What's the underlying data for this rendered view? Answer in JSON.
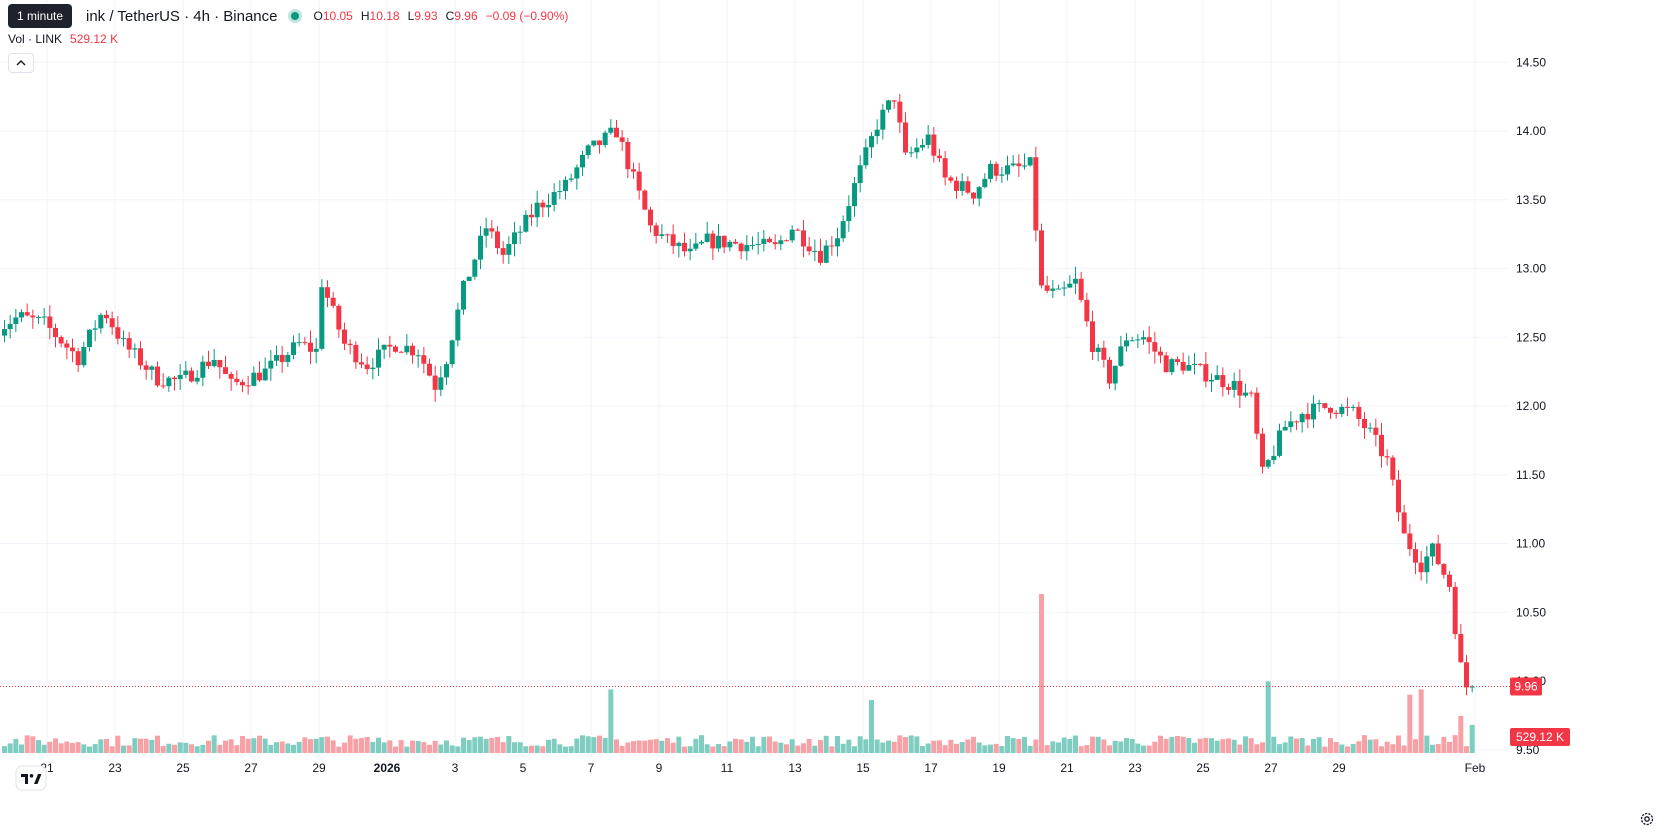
{
  "legend": {
    "title": "ink / TetherUS · 4h · Binance",
    "tooltip": "1 minute",
    "open_key": "O",
    "open": "10.05",
    "high_key": "H",
    "high": "10.18",
    "low_key": "L",
    "low": "9.93",
    "close_key": "C",
    "close": "9.96",
    "change": "−0.09 (−0.90%)",
    "vol_label": "Vol · LINK",
    "vol_value": "529.12 K"
  },
  "price_label": "9.96",
  "volume_label": "529.12 K",
  "colors": {
    "up": "#089981",
    "down": "#f23645",
    "up_vol": "#7fcdc1",
    "down_vol": "#f7a1a7"
  },
  "icons": [
    "chevron-up-icon",
    "tradingview-logo-icon",
    "settings-icon"
  ],
  "chart_data": {
    "type": "candlestick",
    "title": "LINK / TetherUS · 4h · Binance",
    "y_axis_side": "right",
    "y_ticks": [
      "14.50",
      "14.00",
      "13.50",
      "13.00",
      "12.50",
      "12.00",
      "11.50",
      "11.00",
      "10.50",
      "10.00",
      "9.50"
    ],
    "x_ticks": [
      "21",
      "23",
      "25",
      "27",
      "29",
      "2026",
      "3",
      "5",
      "7",
      "9",
      "11",
      "13",
      "15",
      "17",
      "19",
      "21",
      "23",
      "25",
      "27",
      "29",
      "Feb"
    ],
    "grid": true,
    "volume_pane": "overlay-bottom",
    "anchors": [
      [
        "Dec 19 12:00",
        12.55
      ],
      [
        "Dec 20 06:00",
        12.65
      ],
      [
        "Dec 21 00:00",
        12.6
      ],
      [
        "Dec 22 00:00",
        12.35
      ],
      [
        "Dec 22 18:00",
        12.7
      ],
      [
        "Dec 23 08:00",
        12.45
      ],
      [
        "Dec 24 08:00",
        12.2
      ],
      [
        "Dec 25 00:00",
        12.18
      ],
      [
        "Dec 26 00:00",
        12.35
      ],
      [
        "Dec 26 12:00",
        12.15
      ],
      [
        "Dec 27 12:00",
        12.25
      ],
      [
        "Dec 28 12:00",
        12.45
      ],
      [
        "Dec 29 00:00",
        12.4
      ],
      [
        "Dec 29 04:00",
        12.9
      ],
      [
        "Dec 29 20:00",
        12.45
      ],
      [
        "Dec 30 12:00",
        12.3
      ],
      [
        "Dec 31 08:00",
        12.45
      ],
      [
        "Jan 1 00:00",
        12.4
      ],
      [
        "Jan 1 12:00",
        12.15
      ],
      [
        "Jan 1 20:00",
        12.35
      ],
      [
        "Jan 2 08:00",
        12.85
      ],
      [
        "Jan 3 00:00",
        13.3
      ],
      [
        "Jan 3 12:00",
        13.1
      ],
      [
        "Jan 4 12:00",
        13.45
      ],
      [
        "Jan 5 08:00",
        13.6
      ],
      [
        "Jan 6 00:00",
        13.85
      ],
      [
        "Jan 6 20:00",
        14.0
      ],
      [
        "Jan 7 08:00",
        13.65
      ],
      [
        "Jan 7 20:00",
        13.3
      ],
      [
        "Jan 8 08:00",
        13.2
      ],
      [
        "Jan 9 00:00",
        13.1
      ],
      [
        "Jan 9 12:00",
        13.2
      ],
      [
        "Jan 10 12:00",
        13.18
      ],
      [
        "Jan 11 12:00",
        13.15
      ],
      [
        "Jan 12 00:00",
        13.3
      ],
      [
        "Jan 12 20:00",
        13.1
      ],
      [
        "Jan 13 08:00",
        13.25
      ],
      [
        "Jan 13 20:00",
        13.6
      ],
      [
        "Jan 14 12:00",
        14.05
      ],
      [
        "Jan 15 00:00",
        14.25
      ],
      [
        "Jan 15 08:00",
        13.8
      ],
      [
        "Jan 16 00:00",
        13.95
      ],
      [
        "Jan 16 12:00",
        13.65
      ],
      [
        "Jan 17 08:00",
        13.55
      ],
      [
        "Jan 17 20:00",
        13.72
      ],
      [
        "Jan 18 12:00",
        13.72
      ],
      [
        "Jan 19 00:00",
        13.75
      ],
      [
        "Jan 19 04:00",
        13.3
      ],
      [
        "Jan 19 08:00",
        12.85
      ],
      [
        "Jan 19 20:00",
        12.8
      ],
      [
        "Jan 20 08:00",
        12.9
      ],
      [
        "Jan 20 20:00",
        12.45
      ],
      [
        "Jan 21 08:00",
        12.2
      ],
      [
        "Jan 21 20:00",
        12.5
      ],
      [
        "Jan 22 08:00",
        12.5
      ],
      [
        "Jan 23 00:00",
        12.3
      ],
      [
        "Jan 23 12:00",
        12.3
      ],
      [
        "Jan 24 12:00",
        12.2
      ],
      [
        "Jan 25 00:00",
        12.15
      ],
      [
        "Jan 25 12:00",
        12.05
      ],
      [
        "Jan 25 20:00",
        11.5
      ],
      [
        "Jan 26 12:00",
        11.85
      ],
      [
        "Jan 27 00:00",
        11.95
      ],
      [
        "Jan 27 20:00",
        12.0
      ],
      [
        "Jan 28 12:00",
        11.95
      ],
      [
        "Jan 29 00:00",
        11.8
      ],
      [
        "Jan 29 12:00",
        11.6
      ],
      [
        "Jan 30 00:00",
        11.05
      ],
      [
        "Jan 30 12:00",
        10.85
      ],
      [
        "Jan 30 20:00",
        10.95
      ],
      [
        "Jan 31 08:00",
        10.7
      ],
      [
        "Jan 31 16:00",
        10.1
      ],
      [
        "Jan 31 20:00",
        9.96
      ]
    ],
    "volume_spikes": [
      [
        "Jan 6 12:00",
        1200
      ],
      [
        "Jan 14 04:00",
        1000
      ],
      [
        "Jan 19 04:00",
        3000
      ],
      [
        "Jan 25 20:00",
        1350
      ],
      [
        "Jan 30 00:00",
        1100
      ],
      [
        "Jan 30 08:00",
        1200
      ],
      [
        "Jan 31 12:00",
        700
      ],
      [
        "Jan 31 20:00",
        529.12
      ]
    ]
  }
}
